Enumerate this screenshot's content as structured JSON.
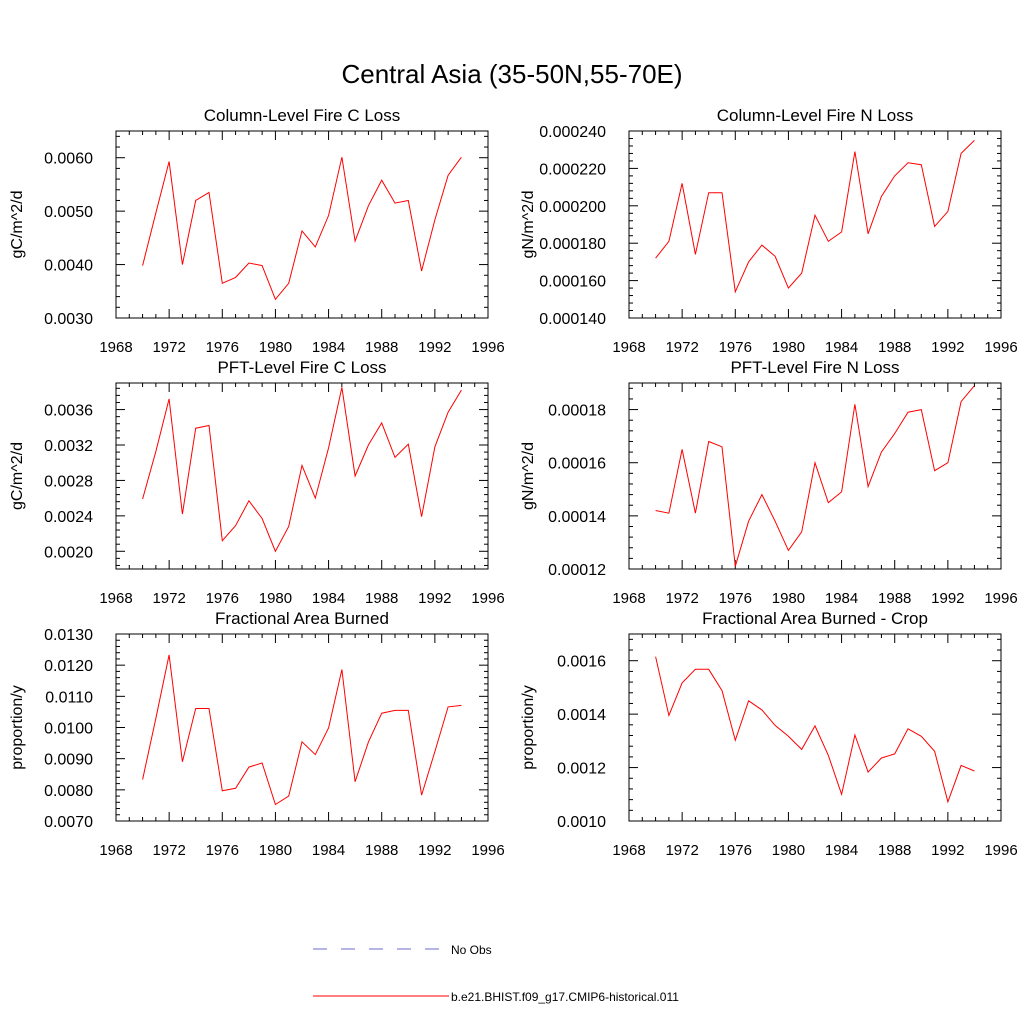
{
  "figure_title": "Central Asia (35-50N,55-70E)",
  "series_color": "#ff0000",
  "obs_color": "#6a6acd",
  "legend": [
    {
      "label": "No Obs",
      "style": "dashed",
      "color": "#6a6acd"
    },
    {
      "label": "b.e21.BHIST.f09_g17.CMIP6-historical.011",
      "style": "solid",
      "color": "#ff0000"
    }
  ],
  "chart_data": [
    {
      "type": "line",
      "title": "Column-Level Fire C Loss",
      "ylabel": "gC/m^2/d",
      "xlabel": "",
      "xlim": [
        1968,
        1996
      ],
      "xticks": [
        1968,
        1972,
        1976,
        1980,
        1984,
        1988,
        1992,
        1996
      ],
      "xtick_labels": [
        "1968",
        "1972",
        "1976",
        "1980",
        "1984",
        "1988",
        "1992",
        "1996"
      ],
      "ylim": [
        0.003,
        0.0065
      ],
      "yticks": [
        0.003,
        0.004,
        0.005,
        0.006
      ],
      "ytick_labels": [
        "0.0030",
        "0.0040",
        "0.0050",
        "0.0060"
      ],
      "x": [
        1970,
        1971,
        1972,
        1973,
        1974,
        1975,
        1976,
        1977,
        1978,
        1979,
        1980,
        1981,
        1982,
        1983,
        1984,
        1985,
        1986,
        1987,
        1988,
        1989,
        1990,
        1991,
        1992,
        1993,
        1994
      ],
      "series": [
        {
          "values": [
            0.00398,
            0.00497,
            0.00593,
            0.004,
            0.0052,
            0.00535,
            0.00365,
            0.00376,
            0.00403,
            0.00398,
            0.00335,
            0.00365,
            0.00463,
            0.00433,
            0.00492,
            0.00601,
            0.00444,
            0.0051,
            0.00558,
            0.00515,
            0.0052,
            0.00388,
            0.00484,
            0.00567,
            0.00601
          ]
        }
      ]
    },
    {
      "type": "line",
      "title": "Column-Level Fire N Loss",
      "ylabel": "gN/m^2/d",
      "xlabel": "",
      "xlim": [
        1968,
        1996
      ],
      "xticks": [
        1968,
        1972,
        1976,
        1980,
        1984,
        1988,
        1992,
        1996
      ],
      "xtick_labels": [
        "1968",
        "1972",
        "1976",
        "1980",
        "1984",
        "1988",
        "1992",
        "1996"
      ],
      "ylim": [
        0.00014,
        0.00024
      ],
      "yticks": [
        0.00014,
        0.00016,
        0.00018,
        0.0002,
        0.00022,
        0.00024
      ],
      "ytick_labels": [
        "0.000140",
        "0.000160",
        "0.000180",
        "0.000200",
        "0.000220",
        "0.000240"
      ],
      "x": [
        1970,
        1971,
        1972,
        1973,
        1974,
        1975,
        1976,
        1977,
        1978,
        1979,
        1980,
        1981,
        1982,
        1983,
        1984,
        1985,
        1986,
        1987,
        1988,
        1989,
        1990,
        1991,
        1992,
        1993,
        1994
      ],
      "series": [
        {
          "values": [
            0.000172,
            0.000181,
            0.000212,
            0.000174,
            0.000207,
            0.000207,
            0.000154,
            0.00017,
            0.000179,
            0.000173,
            0.000156,
            0.000164,
            0.000195,
            0.000181,
            0.000186,
            0.000229,
            0.000185,
            0.000205,
            0.000216,
            0.000223,
            0.000222,
            0.000189,
            0.000197,
            0.000228,
            0.000235
          ]
        }
      ]
    },
    {
      "type": "line",
      "title": "PFT-Level Fire C Loss",
      "ylabel": "gC/m^2/d",
      "xlabel": "",
      "xlim": [
        1968,
        1996
      ],
      "xticks": [
        1968,
        1972,
        1976,
        1980,
        1984,
        1988,
        1992,
        1996
      ],
      "xtick_labels": [
        "1968",
        "1972",
        "1976",
        "1980",
        "1984",
        "1988",
        "1992",
        "1996"
      ],
      "ylim": [
        0.0018,
        0.0039
      ],
      "yticks": [
        0.002,
        0.0024,
        0.0028,
        0.0032,
        0.0036
      ],
      "ytick_labels": [
        "0.0020",
        "0.0024",
        "0.0028",
        "0.0032",
        "0.0036"
      ],
      "x": [
        1970,
        1971,
        1972,
        1973,
        1974,
        1975,
        1976,
        1977,
        1978,
        1979,
        1980,
        1981,
        1982,
        1983,
        1984,
        1985,
        1986,
        1987,
        1988,
        1989,
        1990,
        1991,
        1992,
        1993,
        1994
      ],
      "series": [
        {
          "values": [
            0.00259,
            0.00313,
            0.00372,
            0.00242,
            0.00339,
            0.00342,
            0.00212,
            0.00229,
            0.00257,
            0.00237,
            0.002,
            0.00228,
            0.00297,
            0.0026,
            0.00317,
            0.00385,
            0.00285,
            0.0032,
            0.00345,
            0.00306,
            0.00321,
            0.00239,
            0.00318,
            0.00357,
            0.00382
          ]
        }
      ]
    },
    {
      "type": "line",
      "title": "PFT-Level Fire N Loss",
      "ylabel": "gN/m^2/d",
      "xlabel": "",
      "xlim": [
        1968,
        1996
      ],
      "xticks": [
        1968,
        1972,
        1976,
        1980,
        1984,
        1988,
        1992,
        1996
      ],
      "xtick_labels": [
        "1968",
        "1972",
        "1976",
        "1980",
        "1984",
        "1988",
        "1992",
        "1996"
      ],
      "ylim": [
        0.00012,
        0.00019
      ],
      "yticks": [
        0.00012,
        0.00014,
        0.00016,
        0.00018
      ],
      "ytick_labels": [
        "0.00012",
        "0.00014",
        "0.00016",
        "0.00018"
      ],
      "x": [
        1970,
        1971,
        1972,
        1973,
        1974,
        1975,
        1976,
        1977,
        1978,
        1979,
        1980,
        1981,
        1982,
        1983,
        1984,
        1985,
        1986,
        1987,
        1988,
        1989,
        1990,
        1991,
        1992,
        1993,
        1994
      ],
      "series": [
        {
          "values": [
            0.000142,
            0.000141,
            0.000165,
            0.000141,
            0.000168,
            0.000166,
            0.000121,
            0.000138,
            0.000148,
            0.000138,
            0.000127,
            0.000134,
            0.00016,
            0.000145,
            0.000149,
            0.000182,
            0.000151,
            0.000164,
            0.000171,
            0.000179,
            0.00018,
            0.000157,
            0.00016,
            0.000183,
            0.000189
          ]
        }
      ]
    },
    {
      "type": "line",
      "title": "Fractional Area Burned",
      "ylabel": "proportion/y",
      "xlabel": "",
      "xlim": [
        1968,
        1996
      ],
      "xticks": [
        1968,
        1972,
        1976,
        1980,
        1984,
        1988,
        1992,
        1996
      ],
      "xtick_labels": [
        "1968",
        "1972",
        "1976",
        "1980",
        "1984",
        "1988",
        "1992",
        "1996"
      ],
      "ylim": [
        0.007,
        0.013
      ],
      "yticks": [
        0.007,
        0.008,
        0.009,
        0.01,
        0.011,
        0.012,
        0.013
      ],
      "ytick_labels": [
        "0.0070",
        "0.0080",
        "0.0090",
        "0.0100",
        "0.0110",
        "0.0120",
        "0.0130"
      ],
      "x": [
        1970,
        1971,
        1972,
        1973,
        1974,
        1975,
        1976,
        1977,
        1978,
        1979,
        1980,
        1981,
        1982,
        1983,
        1984,
        1985,
        1986,
        1987,
        1988,
        1989,
        1990,
        1991,
        1992,
        1993,
        1994
      ],
      "series": [
        {
          "values": [
            0.00833,
            0.0103,
            0.01233,
            0.0089,
            0.01061,
            0.01061,
            0.00797,
            0.00805,
            0.00873,
            0.00886,
            0.00753,
            0.0078,
            0.00954,
            0.00913,
            0.00999,
            0.01186,
            0.00826,
            0.00953,
            0.01046,
            0.01055,
            0.01055,
            0.00783,
            0.00923,
            0.01066,
            0.01071
          ]
        }
      ]
    },
    {
      "type": "line",
      "title": "Fractional Area Burned - Crop",
      "ylabel": "proportion/y",
      "xlabel": "",
      "xlim": [
        1968,
        1996
      ],
      "xticks": [
        1968,
        1972,
        1976,
        1980,
        1984,
        1988,
        1992,
        1996
      ],
      "xtick_labels": [
        "1968",
        "1972",
        "1976",
        "1980",
        "1984",
        "1988",
        "1992",
        "1996"
      ],
      "ylim": [
        0.001,
        0.0017
      ],
      "yticks": [
        0.001,
        0.0012,
        0.0014,
        0.0016
      ],
      "ytick_labels": [
        "0.0010",
        "0.0012",
        "0.0014",
        "0.0016"
      ],
      "x": [
        1970,
        1971,
        1972,
        1973,
        1974,
        1975,
        1976,
        1977,
        1978,
        1979,
        1980,
        1981,
        1982,
        1983,
        1984,
        1985,
        1986,
        1987,
        1988,
        1989,
        1990,
        1991,
        1992,
        1993,
        1994
      ],
      "series": [
        {
          "values": [
            0.001615,
            0.001395,
            0.001517,
            0.001568,
            0.001568,
            0.001488,
            0.001302,
            0.00145,
            0.001416,
            0.001358,
            0.001317,
            0.001268,
            0.001356,
            0.001246,
            0.0011,
            0.001322,
            0.001183,
            0.001236,
            0.001251,
            0.001345,
            0.001317,
            0.001261,
            0.001072,
            0.001208,
            0.001187
          ]
        }
      ]
    }
  ]
}
